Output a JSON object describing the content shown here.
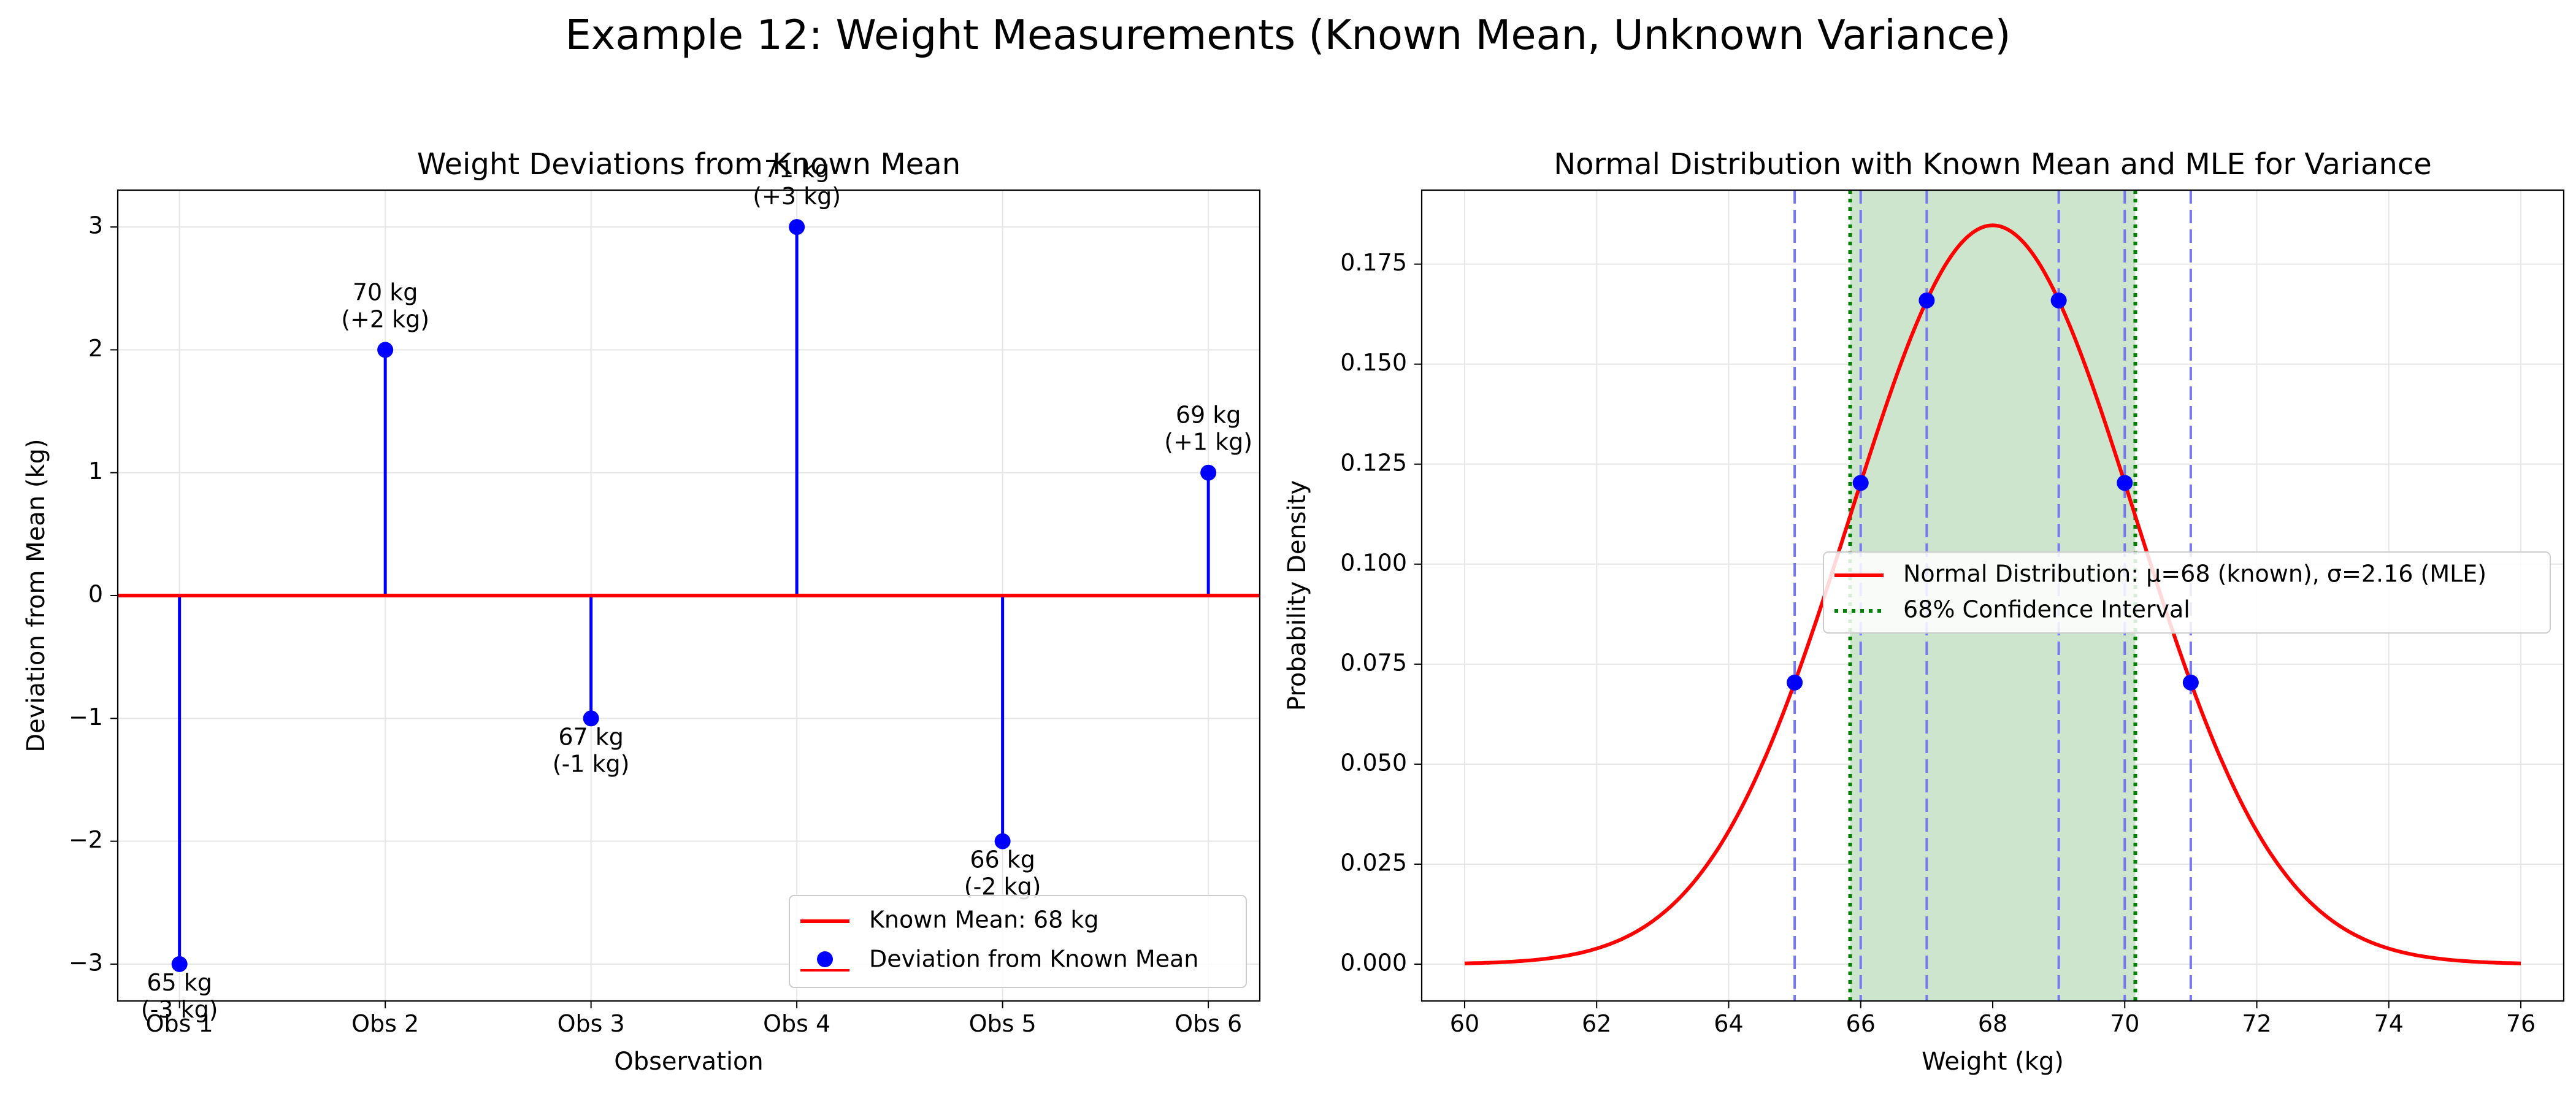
{
  "suptitle": "Example 12: Weight Measurements (Known Mean, Unknown Variance)",
  "colors": {
    "mean_line": "#ff0000",
    "stems": "#0000ff",
    "points": "#0000ff",
    "grid": "#e6e6e6",
    "ci_line": "#008000",
    "ci_fill": "#cce5cc",
    "obs_lines": "#7777ee"
  },
  "chart_data": [
    {
      "type": "stem",
      "title": "Weight Deviations from Known Mean",
      "xlabel": "Observation",
      "ylabel": "Deviation from Mean (kg)",
      "categories": [
        "Obs 1",
        "Obs 2",
        "Obs 3",
        "Obs 4",
        "Obs 5",
        "Obs 6"
      ],
      "values": [
        -3,
        2,
        -1,
        3,
        -2,
        1
      ],
      "point_labels": [
        [
          "65 kg",
          "(-3 kg)"
        ],
        [
          "70 kg",
          "(+2 kg)"
        ],
        [
          "67 kg",
          "(-1 kg)"
        ],
        [
          "71 kg",
          "(+3 kg)"
        ],
        [
          "66 kg",
          "(-2 kg)"
        ],
        [
          "69 kg",
          "(+1 kg)"
        ]
      ],
      "ylim": [
        -3.3,
        3.3
      ],
      "yticks": [
        -3,
        -2,
        -1,
        0,
        1,
        2,
        3
      ],
      "ytick_labels": [
        "−3",
        "−2",
        "−1",
        "0",
        "1",
        "2",
        "3"
      ],
      "grid": true,
      "legend_position": "lower right",
      "legend": [
        "Known Mean: 68 kg",
        "Deviation from Known Mean"
      ]
    },
    {
      "type": "line",
      "title": "Normal Distribution with Known Mean and MLE for Variance",
      "xlabel": "Weight (kg)",
      "ylabel": "Probability Density",
      "mu": 68,
      "sigma": 2.16,
      "xlim": [
        59.35,
        76.65
      ],
      "ylim": [
        -0.0092,
        0.1935
      ],
      "xticks": [
        60,
        62,
        64,
        66,
        68,
        70,
        72,
        74,
        76
      ],
      "yticks": [
        0.0,
        0.025,
        0.05,
        0.075,
        0.1,
        0.125,
        0.15,
        0.175
      ],
      "ytick_labels": [
        "0.000",
        "0.025",
        "0.050",
        "0.075",
        "0.100",
        "0.125",
        "0.150",
        "0.175"
      ],
      "observations": [
        65,
        66,
        67,
        69,
        70,
        71
      ],
      "ci": [
        65.84,
        70.16
      ],
      "grid": true,
      "legend_position": "center right",
      "legend": [
        "Normal Distribution: μ=68 (known), σ=2.16 (MLE)",
        "68% Confidence Interval"
      ]
    }
  ]
}
